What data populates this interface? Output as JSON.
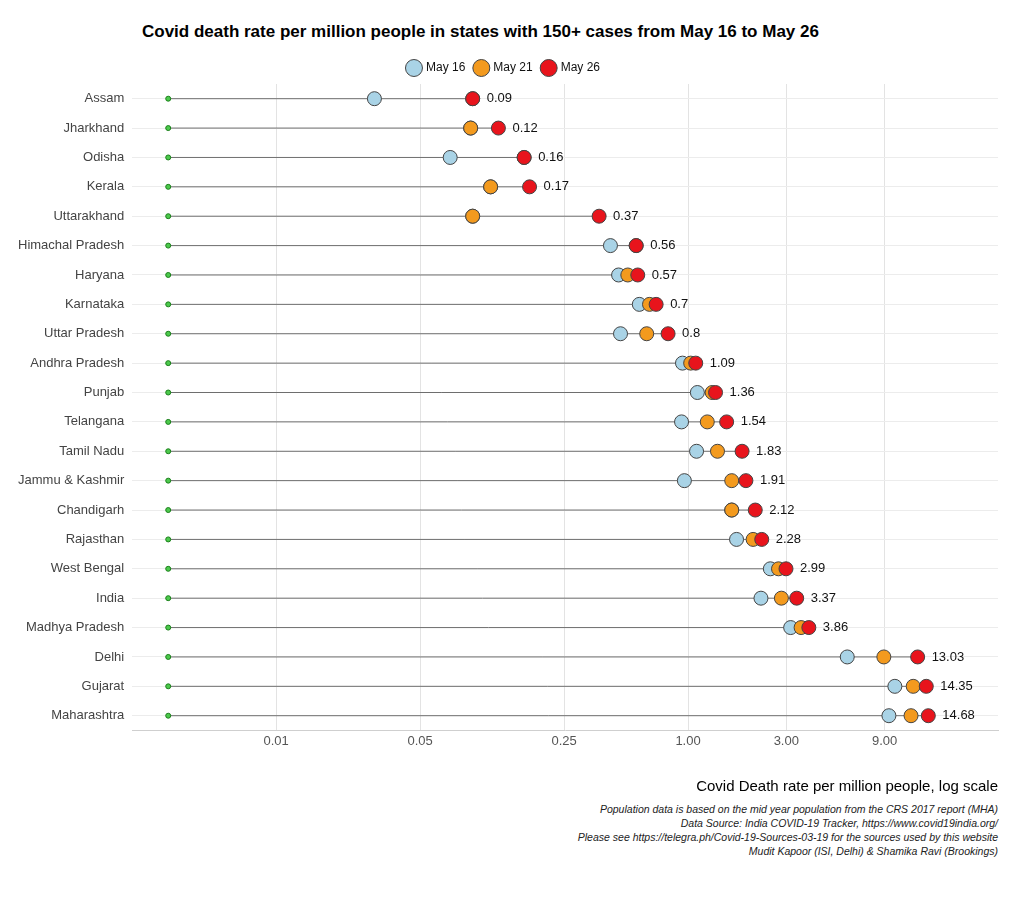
{
  "chart_data": {
    "type": "scatter",
    "title": "Covid death rate per million people in states with 150+ cases from May 16 to May 26",
    "x_label": "Covid Death rate per million people, log scale",
    "notes": [
      "Population data is based on the mid year population from the CRS 2017 report (MHA)",
      "Data Source: India COVID-19 Tracker, https://www.covid19india.org/",
      "Please see https://telegra.ph/Covid-19-Sources-03-19 for the sources used by this website",
      "Mudit Kapoor (ISI, Delhi) & Shamika Ravi (Brookings)"
    ],
    "orientation": "horizontal",
    "log": "x",
    "grid": true,
    "legend": "top",
    "categories": [
      "Assam",
      "Jharkhand",
      "Odisha",
      "Kerala",
      "Uttarakhand",
      "Himachal Pradesh",
      "Haryana",
      "Karnataka",
      "Uttar Pradesh",
      "Andhra Pradesh",
      "Punjab",
      "Telangana",
      "Tamil Nadu",
      "Jammu & Kashmir",
      "Chandigarh",
      "Rajasthan",
      "West Bengal",
      "India",
      "Madhya Pradesh",
      "Delhi",
      "Gujarat",
      "Maharashtra"
    ],
    "series": [
      {
        "name": "May 16",
        "color": "#a9d3e6",
        "marker": "circle",
        "values": [
          0.03,
          0.088,
          0.07,
          0.11,
          0.09,
          0.42,
          0.46,
          0.58,
          0.47,
          0.94,
          1.11,
          0.93,
          1.1,
          0.96,
          1.63,
          1.72,
          2.51,
          2.26,
          3.15,
          5.93,
          10.1,
          9.45
        ]
      },
      {
        "name": "May 21",
        "color": "#f39a1e",
        "marker": "circle",
        "values": [
          0.09,
          0.088,
          0.16,
          0.11,
          0.09,
          0.56,
          0.51,
          0.65,
          0.63,
          1.03,
          1.31,
          1.24,
          1.39,
          1.63,
          1.63,
          2.07,
          2.75,
          2.84,
          3.54,
          8.93,
          12.4,
          12.1
        ]
      },
      {
        "name": "May 26",
        "color": "#e8141c",
        "marker": "circle",
        "data_labels": true,
        "values": [
          0.09,
          0.12,
          0.16,
          0.17,
          0.37,
          0.56,
          0.57,
          0.7,
          0.8,
          1.09,
          1.36,
          1.54,
          1.83,
          1.91,
          2.12,
          2.28,
          2.99,
          3.37,
          3.86,
          13.03,
          14.35,
          14.68
        ]
      }
    ],
    "xlim": [
      0.002,
      32
    ],
    "xticks": [
      0.01,
      0.05,
      0.25,
      {
        "value": 1,
        "label": "1.00"
      },
      {
        "value": 3,
        "label": "3.00"
      },
      {
        "value": 9,
        "label": "9.00"
      }
    ]
  }
}
